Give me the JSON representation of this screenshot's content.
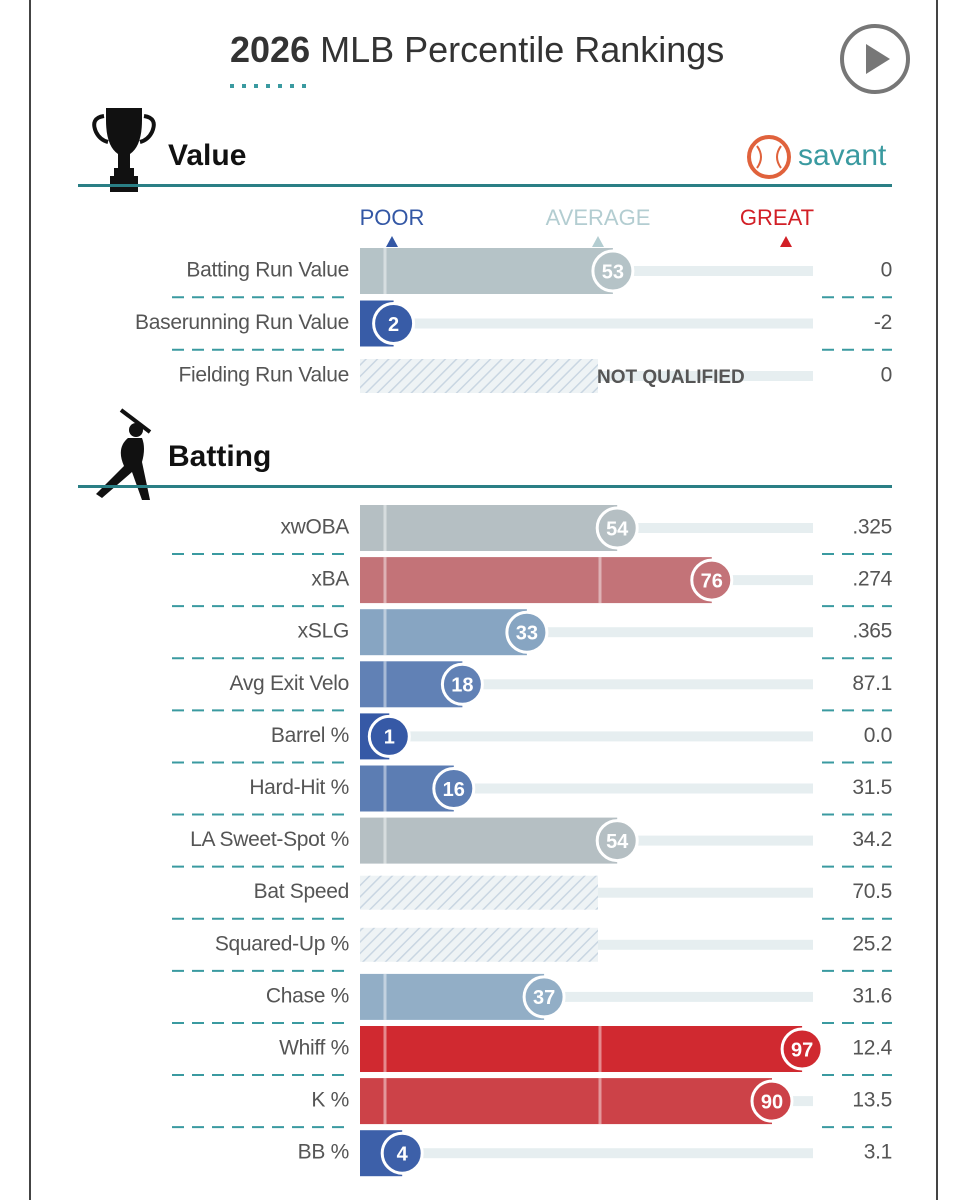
{
  "header": {
    "title_year": "2026",
    "title_rest": "MLB Percentile Rankings",
    "brand": "savant"
  },
  "scale": {
    "poor": "POOR",
    "average": "AVERAGE",
    "great": "GREAT"
  },
  "sections": [
    {
      "title": "Value",
      "rows": [
        {
          "label": "Batting Run Value",
          "percentile": 53,
          "value": "0"
        },
        {
          "label": "Baserunning Run Value",
          "percentile": 2,
          "value": "-2"
        },
        {
          "label": "Fielding Run Value",
          "percentile": null,
          "status": "NOT QUALIFIED",
          "value": "0"
        }
      ]
    },
    {
      "title": "Batting",
      "rows": [
        {
          "label": "xwOBA",
          "percentile": 54,
          "value": ".325"
        },
        {
          "label": "xBA",
          "percentile": 76,
          "value": ".274"
        },
        {
          "label": "xSLG",
          "percentile": 33,
          "value": ".365"
        },
        {
          "label": "Avg Exit Velo",
          "percentile": 18,
          "value": "87.1"
        },
        {
          "label": "Barrel %",
          "percentile": 1,
          "value": "0.0"
        },
        {
          "label": "Hard-Hit %",
          "percentile": 16,
          "value": "31.5"
        },
        {
          "label": "LA Sweet-Spot %",
          "percentile": 54,
          "value": "34.2"
        },
        {
          "label": "Bat Speed",
          "percentile": null,
          "value": "70.5"
        },
        {
          "label": "Squared-Up %",
          "percentile": null,
          "value": "25.2"
        },
        {
          "label": "Chase %",
          "percentile": 37,
          "value": "31.6"
        },
        {
          "label": "Whiff %",
          "percentile": 97,
          "value": "12.4"
        },
        {
          "label": "K %",
          "percentile": 90,
          "value": "13.5"
        },
        {
          "label": "BB %",
          "percentile": 4,
          "value": "3.1"
        }
      ]
    }
  ]
}
